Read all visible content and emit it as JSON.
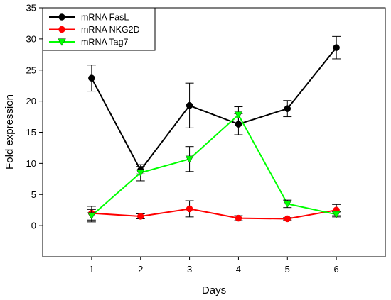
{
  "chart_data": {
    "type": "line",
    "title": "",
    "xlabel": "Days",
    "ylabel": "Fold expression",
    "x": [
      1,
      2,
      3,
      4,
      5,
      6
    ],
    "xlim": [
      0,
      7
    ],
    "ylim": [
      -5,
      35
    ],
    "xticks": [
      1,
      2,
      3,
      4,
      5,
      6
    ],
    "yticks": [
      0,
      5,
      10,
      15,
      20,
      25,
      30,
      35
    ],
    "grid": false,
    "legend_position": "top-left",
    "series": [
      {
        "name": "mRNA FasL",
        "color": "#000000",
        "marker": "circle",
        "values": [
          23.7,
          8.9,
          19.3,
          16.3,
          18.8,
          28.6
        ],
        "err": [
          2.1,
          0.6,
          3.6,
          1.7,
          1.3,
          1.8
        ]
      },
      {
        "name": "mRNA NKG2D",
        "color": "#ff0000",
        "marker": "circle",
        "values": [
          2.0,
          1.5,
          2.7,
          1.2,
          1.1,
          2.5
        ],
        "err": [
          1.1,
          0.4,
          1.3,
          0.4,
          0.2,
          0.9
        ]
      },
      {
        "name": "mRNA Tag7",
        "color": "#00ff00",
        "marker": "triangle-down",
        "values": [
          1.6,
          8.5,
          10.7,
          17.8,
          3.5,
          1.8
        ],
        "err": [
          1.0,
          1.3,
          2.0,
          1.3,
          0.6,
          0.4
        ]
      }
    ]
  }
}
